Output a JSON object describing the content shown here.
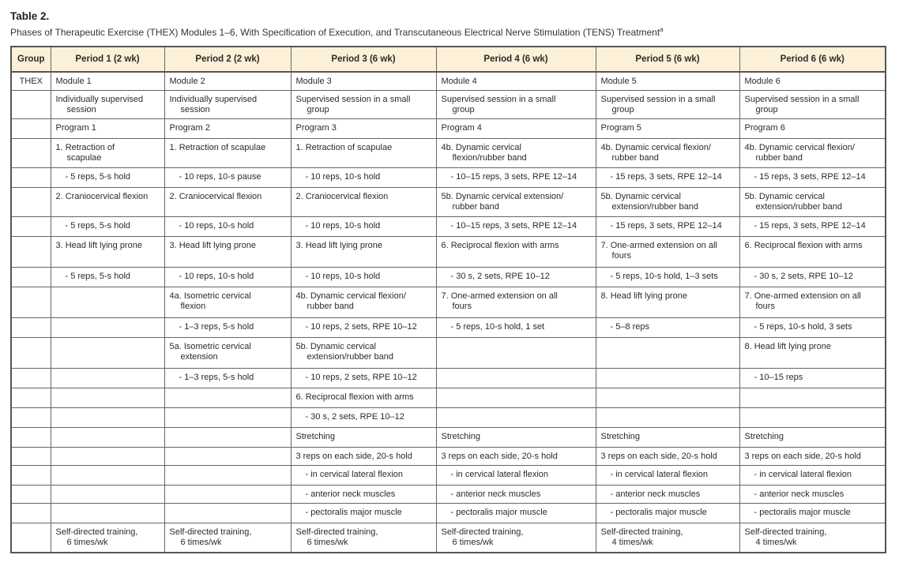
{
  "title": "Table 2.",
  "subtitle": "Phases of Therapeutic Exercise (THEX) Modules 1–6, With Specification of Execution, and Transcutaneous Electrical Nerve Stimulation (TENS) Treatment",
  "footnote_mark": "a",
  "colors": {
    "header_bg": "#fdf0d8",
    "border": "#555555"
  },
  "headers": [
    "Group",
    "Period 1 (2 wk)",
    "Period 2 (2 wk)",
    "Period 3 (6 wk)",
    "Period 4 (6 wk)",
    "Period 5 (6 wk)",
    "Period 6 (6 wk)"
  ],
  "rows": [
    [
      "THEX",
      "Module 1",
      "Module 2",
      "Module 3",
      "Module 4",
      "Module 5",
      "Module 6"
    ],
    [
      "",
      [
        "Individually supervised",
        "session"
      ],
      [
        "Individually supervised",
        "session"
      ],
      [
        "Supervised session in a small",
        "group"
      ],
      [
        "Supervised session in a small",
        "group"
      ],
      [
        "Supervised session in a small",
        "group"
      ],
      [
        "Supervised session in a small",
        "group"
      ]
    ],
    [
      "",
      "Program 1",
      "Program 2",
      "Program 3",
      "Program 4",
      "Program 5",
      "Program 6"
    ],
    [
      "",
      [
        "1. Retraction of",
        "scapulae"
      ],
      "1. Retraction of scapulae",
      "1. Retraction of scapulae",
      [
        "4b. Dynamic cervical",
        "flexion/rubber band"
      ],
      [
        "4b. Dynamic cervical flexion/",
        "rubber band"
      ],
      [
        "4b. Dynamic cervical flexion/",
        "rubber band"
      ]
    ],
    [
      "",
      "- 5 reps, 5-s hold",
      "- 10 reps, 10-s pause",
      "- 10 reps, 10-s hold",
      "- 10–15 reps, 3 sets, RPE 12–14",
      "- 15 reps, 3 sets, RPE 12–14",
      "- 15 reps, 3 sets, RPE 12–14"
    ],
    [
      "",
      "2. Craniocervical flexion",
      "2. Craniocervical flexion",
      "2. Craniocervical flexion",
      [
        "5b. Dynamic cervical extension/",
        "rubber band"
      ],
      [
        "5b. Dynamic cervical",
        "extension/rubber band"
      ],
      [
        "5b. Dynamic cervical",
        "extension/rubber band"
      ]
    ],
    [
      "",
      "- 5 reps, 5-s hold",
      "- 10 reps, 10-s hold",
      "- 10 reps, 10-s hold",
      "- 10–15 reps, 3 sets, RPE 12–14",
      "- 15 reps, 3 sets, RPE 12–14",
      "- 15 reps, 3 sets, RPE 12–14"
    ],
    [
      "",
      "3. Head lift lying prone",
      "3. Head lift lying prone",
      "3. Head lift lying prone",
      "6. Reciprocal flexion with arms",
      [
        "7. One-armed extension on all",
        "fours"
      ],
      "6. Reciprocal flexion with arms"
    ],
    [
      "",
      "- 5 reps, 5-s hold",
      "- 10 reps, 10-s hold",
      "- 10 reps, 10-s hold",
      "- 30 s, 2 sets, RPE 10–12",
      "- 5 reps, 10-s hold, 1–3 sets",
      "- 30 s, 2 sets, RPE 10–12"
    ],
    [
      "",
      "",
      [
        "4a. Isometric cervical",
        "flexion"
      ],
      [
        "4b. Dynamic cervical flexion/",
        "rubber band"
      ],
      [
        "7. One-armed extension on all",
        "fours"
      ],
      "8. Head lift lying prone",
      [
        "7. One-armed extension on all",
        "fours"
      ]
    ],
    [
      "",
      "",
      "- 1–3 reps, 5-s hold",
      "- 10 reps, 2 sets, RPE 10–12",
      "- 5 reps, 10-s hold, 1 set",
      "- 5–8 reps",
      "- 5 reps, 10-s hold, 3 sets"
    ],
    [
      "",
      "",
      [
        "5a. Isometric cervical",
        "extension"
      ],
      [
        "5b. Dynamic cervical",
        "extension/rubber band"
      ],
      "",
      "",
      "8. Head lift lying prone"
    ],
    [
      "",
      "",
      "- 1–3 reps, 5-s hold",
      "- 10 reps, 2 sets, RPE 10–12",
      "",
      "",
      "- 10–15 reps"
    ],
    [
      "",
      "",
      "",
      "6. Reciprocal flexion with arms",
      "",
      "",
      ""
    ],
    [
      "",
      "",
      "",
      "- 30 s, 2 sets, RPE 10–12",
      "",
      "",
      ""
    ],
    [
      "",
      "",
      "",
      "Stretching",
      "Stretching",
      "Stretching",
      "Stretching"
    ],
    [
      "",
      "",
      "",
      "3 reps on each side, 20-s hold",
      "3 reps on each side, 20-s hold",
      "3 reps on each side, 20-s hold",
      "3 reps on each side, 20-s hold"
    ],
    [
      "",
      "",
      "",
      "- in cervical lateral flexion",
      "- in cervical lateral flexion",
      "- in cervical lateral flexion",
      "- in cervical lateral flexion"
    ],
    [
      "",
      "",
      "",
      "- anterior neck muscles",
      "- anterior neck muscles",
      "- anterior neck muscles",
      "- anterior neck muscles"
    ],
    [
      "",
      "",
      "",
      "- pectoralis major muscle",
      "- pectoralis major muscle",
      "- pectoralis major muscle",
      "- pectoralis major muscle"
    ],
    [
      "",
      [
        "Self-directed training,",
        "6 times/wk"
      ],
      [
        "Self-directed training,",
        "6 times/wk"
      ],
      [
        "Self-directed training,",
        "6 times/wk"
      ],
      [
        "Self-directed training,",
        "6 times/wk"
      ],
      [
        "Self-directed training,",
        "4 times/wk"
      ],
      [
        "Self-directed training,",
        "4 times/wk"
      ]
    ]
  ]
}
